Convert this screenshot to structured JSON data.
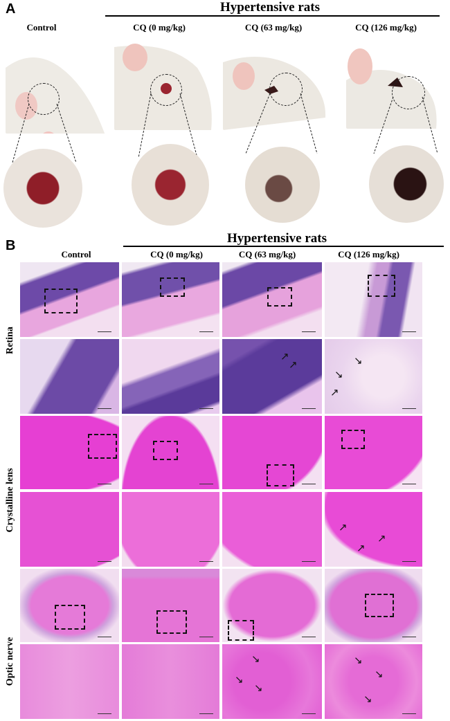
{
  "panel_a": {
    "letter": "A",
    "group_title": "Hypertensive rats",
    "columns": [
      "Control",
      "CQ (0 mg/kg)",
      "CQ (63 mg/kg)",
      "CQ (126 mg/kg)"
    ]
  },
  "panel_b": {
    "letter": "B",
    "group_title": "Hypertensive rats",
    "columns": [
      "Control",
      "CQ (0 mg/kg)",
      "CQ (63 mg/kg)",
      "CQ (126 mg/kg)"
    ],
    "rows": [
      "Retina",
      "Crystalline lens",
      "Optic nerve"
    ]
  },
  "colors": {
    "he_pink": "#e86fd8",
    "lens_magenta": "#e33fd1",
    "nuclei_purple": "#6a3fb0",
    "fur_white": "#efeae3",
    "eye_red": "#8c1d24"
  },
  "icons": {
    "arrow": "arrow-icon",
    "roi": "roi-box"
  }
}
